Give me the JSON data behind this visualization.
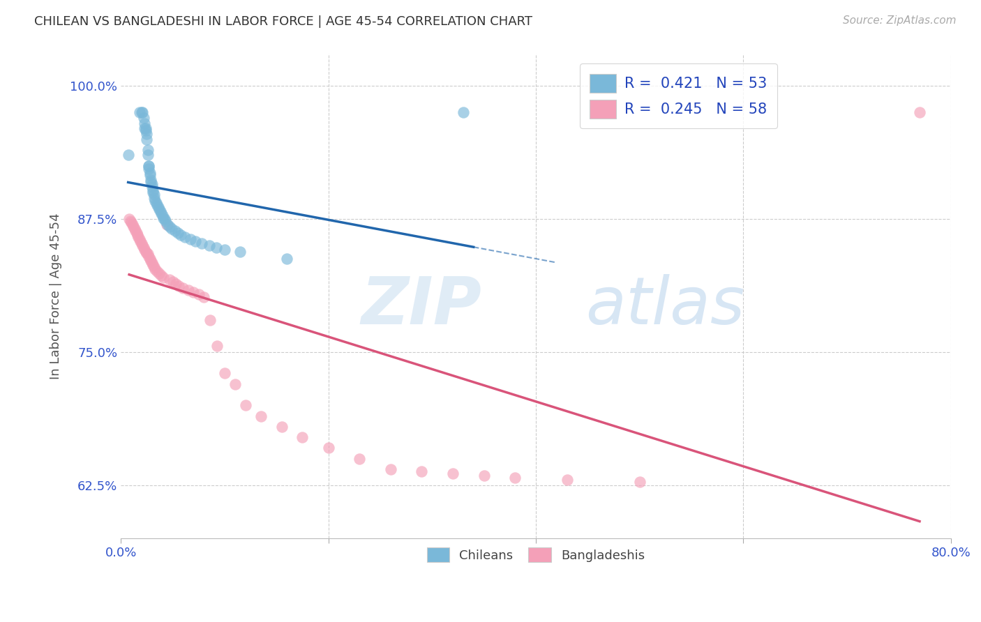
{
  "title": "CHILEAN VS BANGLADESHI IN LABOR FORCE | AGE 45-54 CORRELATION CHART",
  "source": "Source: ZipAtlas.com",
  "ylabel": "In Labor Force | Age 45-54",
  "xlabel_chileans": "Chileans",
  "xlabel_bangladeshis": "Bangladeshis",
  "watermark_zip": "ZIP",
  "watermark_atlas": "atlas",
  "xlim": [
    0.0,
    0.8
  ],
  "ylim": [
    0.575,
    1.03
  ],
  "yticks": [
    0.625,
    0.75,
    0.875,
    1.0
  ],
  "yticklabels": [
    "62.5%",
    "75.0%",
    "87.5%",
    "100.0%"
  ],
  "R_chilean": 0.421,
  "N_chilean": 53,
  "R_bangladeshi": 0.245,
  "N_bangladeshi": 58,
  "chilean_color": "#7ab8d9",
  "bangladeshi_color": "#f4a0b8",
  "chilean_line_color": "#2166ac",
  "bangladeshi_line_color": "#d9547a",
  "title_color": "#333333",
  "axis_label_color": "#555555",
  "tick_color": "#3355cc",
  "grid_color": "#cccccc",
  "chilean_x": [
    0.007,
    0.018,
    0.02,
    0.021,
    0.022,
    0.023,
    0.023,
    0.024,
    0.024,
    0.025,
    0.025,
    0.026,
    0.026,
    0.027,
    0.027,
    0.027,
    0.028,
    0.028,
    0.029,
    0.029,
    0.03,
    0.03,
    0.031,
    0.031,
    0.032,
    0.032,
    0.033,
    0.034,
    0.035,
    0.036,
    0.037,
    0.038,
    0.039,
    0.04,
    0.041,
    0.042,
    0.043,
    0.045,
    0.047,
    0.049,
    0.052,
    0.055,
    0.058,
    0.062,
    0.067,
    0.072,
    0.078,
    0.085,
    0.092,
    0.1,
    0.115,
    0.16,
    0.33
  ],
  "chilean_y": [
    0.935,
    0.975,
    0.975,
    0.975,
    0.97,
    0.965,
    0.96,
    0.96,
    0.958,
    0.955,
    0.95,
    0.94,
    0.935,
    0.925,
    0.925,
    0.922,
    0.918,
    0.916,
    0.912,
    0.91,
    0.908,
    0.905,
    0.902,
    0.9,
    0.898,
    0.895,
    0.892,
    0.89,
    0.888,
    0.886,
    0.884,
    0.882,
    0.88,
    0.878,
    0.876,
    0.875,
    0.873,
    0.87,
    0.868,
    0.866,
    0.864,
    0.862,
    0.86,
    0.858,
    0.856,
    0.854,
    0.852,
    0.85,
    0.848,
    0.846,
    0.844,
    0.838,
    0.975
  ],
  "bangladeshi_x": [
    0.008,
    0.009,
    0.01,
    0.011,
    0.012,
    0.013,
    0.014,
    0.015,
    0.016,
    0.017,
    0.018,
    0.019,
    0.02,
    0.021,
    0.022,
    0.023,
    0.024,
    0.025,
    0.026,
    0.027,
    0.028,
    0.029,
    0.03,
    0.031,
    0.032,
    0.033,
    0.035,
    0.037,
    0.039,
    0.041,
    0.044,
    0.047,
    0.05,
    0.053,
    0.056,
    0.06,
    0.065,
    0.07,
    0.075,
    0.08,
    0.086,
    0.093,
    0.1,
    0.11,
    0.12,
    0.135,
    0.155,
    0.175,
    0.2,
    0.23,
    0.26,
    0.29,
    0.32,
    0.35,
    0.38,
    0.43,
    0.5,
    0.77
  ],
  "bangladeshi_y": [
    0.875,
    0.873,
    0.872,
    0.87,
    0.868,
    0.866,
    0.864,
    0.862,
    0.86,
    0.858,
    0.856,
    0.854,
    0.852,
    0.85,
    0.848,
    0.846,
    0.844,
    0.843,
    0.842,
    0.84,
    0.838,
    0.836,
    0.834,
    0.832,
    0.83,
    0.828,
    0.826,
    0.824,
    0.822,
    0.82,
    0.87,
    0.818,
    0.816,
    0.814,
    0.812,
    0.81,
    0.808,
    0.806,
    0.804,
    0.802,
    0.78,
    0.756,
    0.73,
    0.72,
    0.7,
    0.69,
    0.68,
    0.67,
    0.66,
    0.65,
    0.64,
    0.638,
    0.636,
    0.634,
    0.632,
    0.63,
    0.628,
    0.975
  ]
}
